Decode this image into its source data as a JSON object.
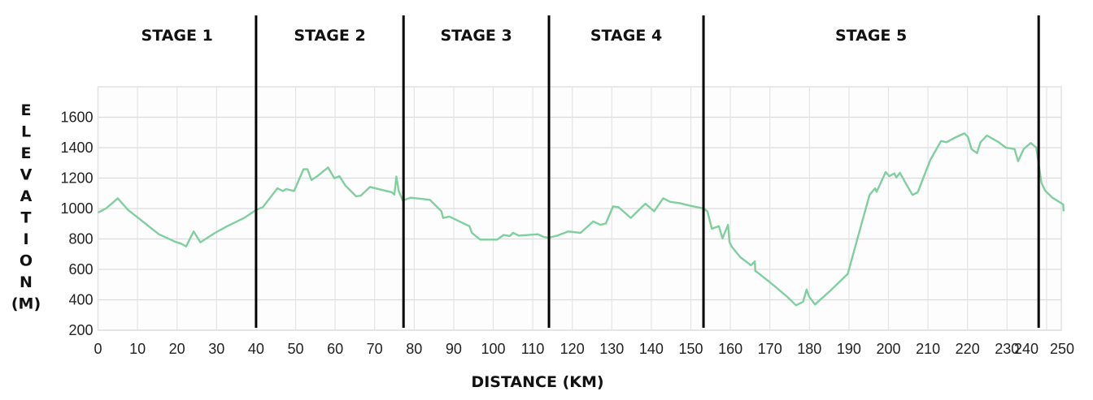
{
  "chart_data": {
    "type": "line",
    "title": "",
    "xlabel": "DISTANCE (KM)",
    "ylabel": "ELEVATION (M)",
    "ylabel_letters": [
      "E",
      "L",
      "E",
      "V",
      "A",
      "T",
      "I",
      "O",
      "N",
      "(M)"
    ],
    "xlim": [
      0,
      244.3
    ],
    "ylim": [
      200,
      1800
    ],
    "xticks": [
      0,
      10,
      20,
      30,
      40,
      50,
      60,
      70,
      80,
      90,
      100,
      110,
      120,
      130,
      140,
      150,
      160,
      170,
      180,
      190,
      200,
      210,
      220,
      230,
      240,
      250
    ],
    "yticks": [
      200,
      400,
      600,
      800,
      1000,
      1200,
      1400,
      1600
    ],
    "grid": true,
    "line_color": "#7fcf9f",
    "stages": [
      {
        "label": "STAGE 1",
        "start_km": 0,
        "end_km": 40
      },
      {
        "label": "STAGE 2",
        "start_km": 40,
        "end_km": 77.3
      },
      {
        "label": "STAGE 3",
        "start_km": 77.3,
        "end_km": 114.1
      },
      {
        "label": "STAGE 4",
        "start_km": 114.1,
        "end_km": 153.2
      },
      {
        "label": "STAGE 5",
        "start_km": 153.2,
        "end_km": 238
      }
    ],
    "series": [
      {
        "name": "Elevation",
        "points": [
          [
            0,
            973
          ],
          [
            2,
            1000
          ],
          [
            3.6,
            1035
          ],
          [
            5,
            1067
          ],
          [
            7.6,
            991
          ],
          [
            11.5,
            911
          ],
          [
            15.4,
            831
          ],
          [
            19.4,
            783
          ],
          [
            21,
            769
          ],
          [
            22.3,
            751
          ],
          [
            24.2,
            849
          ],
          [
            25.9,
            778
          ],
          [
            29.6,
            840
          ],
          [
            32.7,
            884
          ],
          [
            37,
            938
          ],
          [
            40,
            991
          ],
          [
            41.7,
            1009
          ],
          [
            45.4,
            1133
          ],
          [
            46.8,
            1115
          ],
          [
            47.6,
            1128
          ],
          [
            49.6,
            1115
          ],
          [
            52,
            1258
          ],
          [
            53,
            1258
          ],
          [
            54,
            1187
          ],
          [
            55.5,
            1213
          ],
          [
            58.2,
            1270
          ],
          [
            59.8,
            1199
          ],
          [
            61.1,
            1213
          ],
          [
            62.6,
            1151
          ],
          [
            65.3,
            1080
          ],
          [
            66.5,
            1085
          ],
          [
            68.8,
            1142
          ],
          [
            74.3,
            1107
          ],
          [
            75,
            1092
          ],
          [
            75.5,
            1210
          ],
          [
            76.1,
            1115
          ],
          [
            77.1,
            1053
          ],
          [
            79,
            1071
          ],
          [
            80.6,
            1067
          ],
          [
            84,
            1057
          ],
          [
            86.9,
            982
          ],
          [
            87.3,
            938
          ],
          [
            88.9,
            947
          ],
          [
            94,
            884
          ],
          [
            94.6,
            840
          ],
          [
            96.7,
            796
          ],
          [
            101,
            796
          ],
          [
            102.6,
            826
          ],
          [
            104.2,
            819
          ],
          [
            105,
            840
          ],
          [
            106.5,
            822
          ],
          [
            111.3,
            831
          ],
          [
            112.8,
            813
          ],
          [
            114,
            808
          ],
          [
            116.2,
            822
          ],
          [
            119,
            849
          ],
          [
            122.1,
            840
          ],
          [
            125.3,
            915
          ],
          [
            127.1,
            893
          ],
          [
            128.5,
            902
          ],
          [
            130.3,
            1014
          ],
          [
            131.7,
            1009
          ],
          [
            134.8,
            938
          ],
          [
            138.5,
            1032
          ],
          [
            140.7,
            982
          ],
          [
            143,
            1067
          ],
          [
            144.8,
            1044
          ],
          [
            147.1,
            1036
          ],
          [
            149.8,
            1018
          ],
          [
            153.3,
            1000
          ],
          [
            154.2,
            982
          ],
          [
            155.3,
            867
          ],
          [
            157.1,
            884
          ],
          [
            158,
            804
          ],
          [
            159.4,
            893
          ],
          [
            159.8,
            778
          ],
          [
            160.3,
            751
          ],
          [
            162.5,
            680
          ],
          [
            165.2,
            627
          ],
          [
            166.2,
            653
          ],
          [
            166.3,
            591
          ],
          [
            169.8,
            520
          ],
          [
            174.3,
            422
          ],
          [
            176.6,
            364
          ],
          [
            178.4,
            387
          ],
          [
            179.3,
            467
          ],
          [
            179.9,
            422
          ],
          [
            181.4,
            369
          ],
          [
            185.2,
            458
          ],
          [
            189.7,
            570
          ],
          [
            192,
            787
          ],
          [
            195.2,
            1089
          ],
          [
            196.6,
            1133
          ],
          [
            197,
            1110
          ],
          [
            199.3,
            1240
          ],
          [
            200.2,
            1213
          ],
          [
            201.5,
            1231
          ],
          [
            202,
            1204
          ],
          [
            202.9,
            1235
          ],
          [
            204.7,
            1151
          ],
          [
            206.1,
            1089
          ],
          [
            207.4,
            1107
          ],
          [
            210.6,
            1320
          ],
          [
            213.3,
            1444
          ],
          [
            214.7,
            1436
          ],
          [
            216.5,
            1462
          ],
          [
            219.2,
            1494
          ],
          [
            220.1,
            1471
          ],
          [
            221,
            1391
          ],
          [
            222.4,
            1364
          ],
          [
            223.3,
            1436
          ],
          [
            224.9,
            1480
          ],
          [
            227.9,
            1436
          ],
          [
            229.7,
            1400
          ],
          [
            231.9,
            1391
          ],
          [
            232.8,
            1311
          ],
          [
            234.2,
            1391
          ],
          [
            236,
            1431
          ],
          [
            237.4,
            1400
          ],
          [
            238.7,
            1169
          ],
          [
            239.7,
            1116
          ],
          [
            241.5,
            1071
          ],
          [
            244.2,
            1027
          ],
          [
            244.3,
            982
          ]
        ]
      }
    ]
  }
}
